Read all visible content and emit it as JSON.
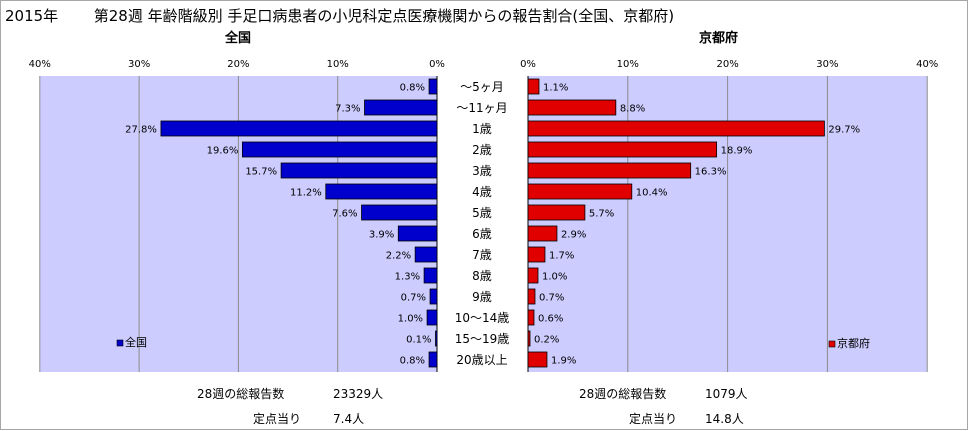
{
  "header": {
    "year": "2015年",
    "title": "第28週 年齢階級別 手足口病患者の小児科定点医療機関からの報告割合(全国、京都府)"
  },
  "chart_data": [
    {
      "type": "bar",
      "orientation": "horizontal",
      "direction": "leftward",
      "title": "全国",
      "categories": [
        "〜5ヶ月",
        "〜11ヶ月",
        "1歳",
        "2歳",
        "3歳",
        "4歳",
        "5歳",
        "6歳",
        "7歳",
        "8歳",
        "9歳",
        "10〜14歳",
        "15〜19歳",
        "20歳以上"
      ],
      "series": [
        {
          "name": "全国",
          "color": "#0000cc",
          "values": [
            0.8,
            7.3,
            27.8,
            19.6,
            15.7,
            11.2,
            7.6,
            3.9,
            2.2,
            1.3,
            0.7,
            1.0,
            0.1,
            0.8
          ],
          "labels": [
            "0.8%",
            "7.3%",
            "27.8%",
            "19.6%",
            "15.7%",
            "11.2%",
            "7.6%",
            "3.9%",
            "2.2%",
            "1.3%",
            "0.7%",
            "1.0%",
            "0.1%",
            "0.8%"
          ]
        }
      ],
      "xlim": [
        0,
        40
      ],
      "ticks": [
        "0%",
        "10%",
        "20%",
        "30%",
        "40%"
      ],
      "grid": true,
      "legend": "bottom-left",
      "summary": {
        "total_label": "28週の総報告数",
        "total_value": "23329人",
        "per_site_label": "定点当り",
        "per_site_value": "7.4人"
      }
    },
    {
      "type": "bar",
      "orientation": "horizontal",
      "direction": "rightward",
      "title": "京都府",
      "categories": [
        "〜5ヶ月",
        "〜11ヶ月",
        "1歳",
        "2歳",
        "3歳",
        "4歳",
        "5歳",
        "6歳",
        "7歳",
        "8歳",
        "9歳",
        "10〜14歳",
        "15〜19歳",
        "20歳以上"
      ],
      "series": [
        {
          "name": "京都府",
          "color": "#e00000",
          "values": [
            1.1,
            8.8,
            29.7,
            18.9,
            16.3,
            10.4,
            5.7,
            2.9,
            1.7,
            1.0,
            0.7,
            0.6,
            0.2,
            1.9
          ],
          "labels": [
            "1.1%",
            "8.8%",
            "29.7%",
            "18.9%",
            "16.3%",
            "10.4%",
            "5.7%",
            "2.9%",
            "1.7%",
            "1.0%",
            "0.7%",
            "0.6%",
            "0.2%",
            "1.9%"
          ]
        }
      ],
      "xlim": [
        0,
        40
      ],
      "ticks": [
        "0%",
        "10%",
        "20%",
        "30%",
        "40%"
      ],
      "grid": true,
      "legend": "bottom-right",
      "summary": {
        "total_label": "28週の総報告数",
        "total_value": "1079人",
        "per_site_label": "定点当り",
        "per_site_value": "14.8人"
      }
    }
  ]
}
